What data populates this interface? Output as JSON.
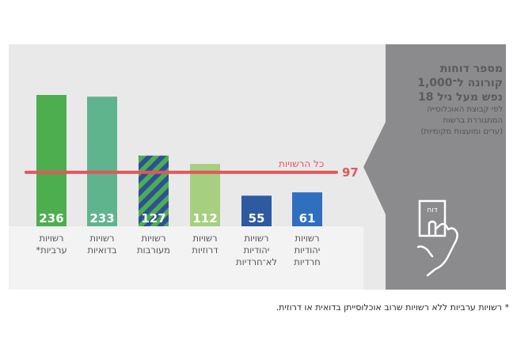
{
  "title_lines": [
    "מספר דוחות",
    "קורונה ל־1,000",
    "נפש מעל גיל 18"
  ],
  "subtitle_lines": [
    "לפי קבוצת האוכלוסייה",
    "המתגוררת ברשות",
    "(ערים ומועצות מקומיות)"
  ],
  "icon_text": "דוח",
  "footnote": "* רשויות ערביות ללא רשויות שרוב אוכלוסייתן בדואית או דרוזית.",
  "colors": {
    "arab": "#4cae4f",
    "bedouin": "#5fb48e",
    "mixed_blue": "#2f4f97",
    "mixed_green": "#4cae4f",
    "druze": "#a6cf80",
    "jewish_non_haredi": "#2d5aa0",
    "haredi": "#2f6fc0",
    "average_line": "#e0575c"
  },
  "chart_data": {
    "type": "bar",
    "title": "מספר דוחות קורונה ל־1,000 נפש מעל גיל 18",
    "categories": [
      [
        "רשויות",
        "ערביות*"
      ],
      [
        "רשויות",
        "בדואיות"
      ],
      [
        "רשויות",
        "מעורבות"
      ],
      [
        "רשויות",
        "דרוזיות"
      ],
      [
        "רשויות",
        "יהודיות",
        "לא־חרדיות"
      ],
      [
        "רשויות",
        "יהודיות",
        "חרדיות"
      ]
    ],
    "values": [
      236,
      233,
      127,
      112,
      55,
      61
    ],
    "value_labels": [
      "236",
      "233",
      "127",
      "112",
      "55",
      "61"
    ],
    "reference_line": {
      "label": "כל הרשויות",
      "value": 97,
      "value_label": "97"
    }
  }
}
